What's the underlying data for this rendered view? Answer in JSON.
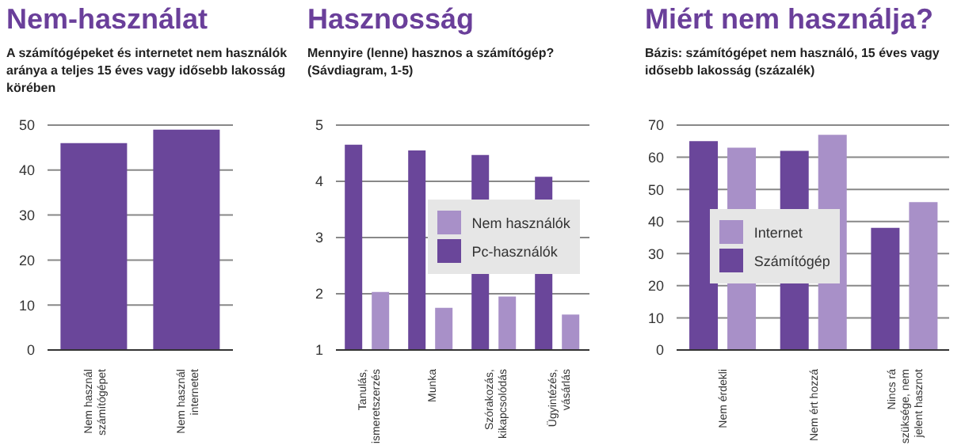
{
  "chart_data": [
    {
      "type": "bar",
      "title": "Nem-használat",
      "subtitle": "A számítógépeket és internetet nem használók aránya a teljes 15 éves vagy idősebb lakosság körében",
      "categories": [
        "Nem használ számítógépet",
        "Nem használ internetet"
      ],
      "values": [
        46,
        49
      ],
      "color": "#6a469a",
      "ylim": [
        0,
        50
      ],
      "yticks": [
        0,
        10,
        20,
        30,
        40,
        50
      ],
      "grid": "y"
    },
    {
      "type": "bar",
      "title": "Hasznosság",
      "subtitle": "Mennyire (lenne) hasznos a számítógép? (Sávdiagram, 1-5)",
      "categories": [
        "Tanulás, ismeretszerzés",
        "Munka",
        "Szórakozás, kikapcsolódás",
        "Ügyintézés, vásárlás"
      ],
      "series": [
        {
          "name": "Pc-használók",
          "color": "#6a469a",
          "values": [
            4.65,
            4.55,
            4.47,
            4.08
          ]
        },
        {
          "name": "Nem használók",
          "color": "#a890c8",
          "values": [
            2.03,
            1.75,
            1.95,
            1.63
          ]
        }
      ],
      "ylim": [
        1,
        5
      ],
      "yticks": [
        1,
        2,
        3,
        4,
        5
      ],
      "grid": "y",
      "legend": "center"
    },
    {
      "type": "bar",
      "title": "Miért nem használja?",
      "subtitle": "Bázis: számítógépet nem használó, 15 éves vagy idősebb lakosság (százalék)",
      "categories": [
        "Nem érdekli",
        "Nem ért hozzá",
        "Nincs rá szüksége, nem jelent hasznot"
      ],
      "series": [
        {
          "name": "Számítógép",
          "color": "#6a469a",
          "values": [
            65,
            62,
            38
          ]
        },
        {
          "name": "Internet",
          "color": "#a890c8",
          "values": [
            63,
            67,
            46
          ]
        }
      ],
      "ylim": [
        0,
        70
      ],
      "yticks": [
        0,
        10,
        20,
        30,
        40,
        50,
        60,
        70
      ],
      "grid": "y",
      "legend": "left"
    }
  ]
}
